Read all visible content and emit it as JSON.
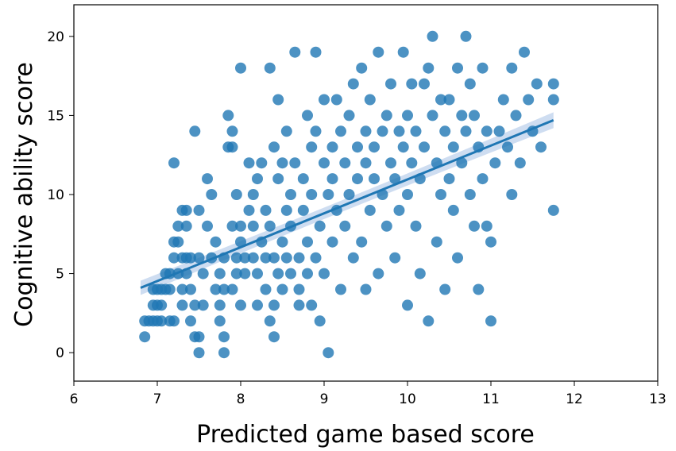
{
  "chart_data": {
    "type": "scatter",
    "title": "",
    "xlabel": "Predicted game based score",
    "ylabel": "Cognitive ability score",
    "xlim": [
      6,
      13
    ],
    "ylim": [
      -1.8,
      22
    ],
    "xticks": [
      "6",
      "7",
      "8",
      "9",
      "10",
      "11",
      "12",
      "13"
    ],
    "yticks": [
      "0",
      "5",
      "10",
      "15",
      "20"
    ],
    "grid": false,
    "legend": "none",
    "point_color": "#1f77b4",
    "regression": {
      "x": [
        6.8,
        11.75
      ],
      "y": [
        4.1,
        14.7
      ],
      "ci_band": true,
      "band_color": "#aec7e8"
    },
    "points": [
      [
        6.85,
        1
      ],
      [
        6.85,
        2
      ],
      [
        6.9,
        2
      ],
      [
        6.95,
        4
      ],
      [
        6.95,
        2
      ],
      [
        6.95,
        3
      ],
      [
        7.0,
        3
      ],
      [
        7.0,
        2
      ],
      [
        7.0,
        4
      ],
      [
        7.05,
        3
      ],
      [
        7.05,
        2
      ],
      [
        7.05,
        4
      ],
      [
        7.1,
        4
      ],
      [
        7.1,
        5
      ],
      [
        7.15,
        2
      ],
      [
        7.15,
        4
      ],
      [
        7.15,
        5
      ],
      [
        7.2,
        6
      ],
      [
        7.2,
        7
      ],
      [
        7.2,
        2
      ],
      [
        7.2,
        12
      ],
      [
        7.25,
        5
      ],
      [
        7.25,
        7
      ],
      [
        7.25,
        8
      ],
      [
        7.3,
        3
      ],
      [
        7.3,
        4
      ],
      [
        7.3,
        6
      ],
      [
        7.3,
        9
      ],
      [
        7.35,
        5
      ],
      [
        7.35,
        6
      ],
      [
        7.35,
        8
      ],
      [
        7.35,
        9
      ],
      [
        7.4,
        4
      ],
      [
        7.4,
        6
      ],
      [
        7.4,
        2
      ],
      [
        7.45,
        3
      ],
      [
        7.45,
        1
      ],
      [
        7.45,
        14
      ],
      [
        7.5,
        0
      ],
      [
        7.5,
        1
      ],
      [
        7.5,
        6
      ],
      [
        7.5,
        9
      ],
      [
        7.55,
        3
      ],
      [
        7.55,
        5
      ],
      [
        7.6,
        8
      ],
      [
        7.6,
        11
      ],
      [
        7.65,
        6
      ],
      [
        7.65,
        10
      ],
      [
        7.7,
        4
      ],
      [
        7.7,
        7
      ],
      [
        7.75,
        2
      ],
      [
        7.75,
        3
      ],
      [
        7.75,
        5
      ],
      [
        7.8,
        0
      ],
      [
        7.8,
        1
      ],
      [
        7.8,
        4
      ],
      [
        7.8,
        6
      ],
      [
        7.85,
        13
      ],
      [
        7.85,
        15
      ],
      [
        7.9,
        4
      ],
      [
        7.9,
        8
      ],
      [
        7.9,
        14
      ],
      [
        7.9,
        13
      ],
      [
        7.95,
        6
      ],
      [
        7.95,
        10
      ],
      [
        7.95,
        5
      ],
      [
        8.0,
        7
      ],
      [
        8.0,
        8
      ],
      [
        8.0,
        3
      ],
      [
        8.0,
        18
      ],
      [
        8.05,
        5
      ],
      [
        8.05,
        6
      ],
      [
        8.1,
        9
      ],
      [
        8.1,
        12
      ],
      [
        8.15,
        8
      ],
      [
        8.15,
        10
      ],
      [
        8.15,
        6
      ],
      [
        8.2,
        5
      ],
      [
        8.2,
        11
      ],
      [
        8.2,
        3
      ],
      [
        8.25,
        7
      ],
      [
        8.25,
        12
      ],
      [
        8.3,
        6
      ],
      [
        8.3,
        9
      ],
      [
        8.3,
        4
      ],
      [
        8.35,
        2
      ],
      [
        8.35,
        8
      ],
      [
        8.35,
        18
      ],
      [
        8.4,
        1
      ],
      [
        8.4,
        3
      ],
      [
        8.4,
        6
      ],
      [
        8.4,
        13
      ],
      [
        8.45,
        5
      ],
      [
        8.45,
        11
      ],
      [
        8.45,
        16
      ],
      [
        8.5,
        4
      ],
      [
        8.5,
        7
      ],
      [
        8.5,
        12
      ],
      [
        8.55,
        6
      ],
      [
        8.55,
        9
      ],
      [
        8.55,
        14
      ],
      [
        8.6,
        5
      ],
      [
        8.6,
        8
      ],
      [
        8.6,
        10
      ],
      [
        8.65,
        19
      ],
      [
        8.65,
        12
      ],
      [
        8.7,
        6
      ],
      [
        8.7,
        4
      ],
      [
        8.7,
        3
      ],
      [
        8.75,
        9
      ],
      [
        8.75,
        11
      ],
      [
        8.8,
        5
      ],
      [
        8.8,
        7
      ],
      [
        8.8,
        15
      ],
      [
        8.85,
        13
      ],
      [
        8.85,
        10
      ],
      [
        8.85,
        3
      ],
      [
        8.9,
        14
      ],
      [
        8.9,
        6
      ],
      [
        8.9,
        19
      ],
      [
        8.95,
        2
      ],
      [
        8.95,
        8
      ],
      [
        9.0,
        16
      ],
      [
        9.0,
        12
      ],
      [
        9.0,
        5
      ],
      [
        9.05,
        10
      ],
      [
        9.05,
        0
      ],
      [
        9.1,
        11
      ],
      [
        9.1,
        13
      ],
      [
        9.1,
        7
      ],
      [
        9.15,
        16
      ],
      [
        9.15,
        9
      ],
      [
        9.2,
        14
      ],
      [
        9.2,
        4
      ],
      [
        9.25,
        12
      ],
      [
        9.25,
        8
      ],
      [
        9.3,
        15
      ],
      [
        9.3,
        10
      ],
      [
        9.35,
        17
      ],
      [
        9.35,
        6
      ],
      [
        9.4,
        13
      ],
      [
        9.4,
        11
      ],
      [
        9.45,
        18
      ],
      [
        9.45,
        7
      ],
      [
        9.5,
        14
      ],
      [
        9.5,
        12
      ],
      [
        9.5,
        4
      ],
      [
        9.55,
        9
      ],
      [
        9.55,
        16
      ],
      [
        9.6,
        11
      ],
      [
        9.6,
        13
      ],
      [
        9.65,
        19
      ],
      [
        9.65,
        5
      ],
      [
        9.7,
        14
      ],
      [
        9.7,
        10
      ],
      [
        9.75,
        8
      ],
      [
        9.75,
        15
      ],
      [
        9.8,
        12
      ],
      [
        9.8,
        17
      ],
      [
        9.85,
        11
      ],
      [
        9.85,
        6
      ],
      [
        9.9,
        14
      ],
      [
        9.9,
        9
      ],
      [
        9.95,
        19
      ],
      [
        9.95,
        13
      ],
      [
        10.0,
        15
      ],
      [
        10.0,
        10
      ],
      [
        10.0,
        3
      ],
      [
        10.05,
        17
      ],
      [
        10.05,
        12
      ],
      [
        10.1,
        14
      ],
      [
        10.1,
        8
      ],
      [
        10.15,
        11
      ],
      [
        10.15,
        5
      ],
      [
        10.2,
        17
      ],
      [
        10.2,
        13
      ],
      [
        10.25,
        2
      ],
      [
        10.25,
        18
      ],
      [
        10.3,
        20
      ],
      [
        10.3,
        15
      ],
      [
        10.35,
        12
      ],
      [
        10.35,
        7
      ],
      [
        10.4,
        16
      ],
      [
        10.4,
        10
      ],
      [
        10.45,
        14
      ],
      [
        10.45,
        4
      ],
      [
        10.5,
        16
      ],
      [
        10.5,
        11
      ],
      [
        10.55,
        13
      ],
      [
        10.55,
        9
      ],
      [
        10.6,
        18
      ],
      [
        10.6,
        6
      ],
      [
        10.65,
        15
      ],
      [
        10.65,
        12
      ],
      [
        10.7,
        20
      ],
      [
        10.7,
        14
      ],
      [
        10.75,
        17
      ],
      [
        10.75,
        10
      ],
      [
        10.8,
        15
      ],
      [
        10.8,
        8
      ],
      [
        10.85,
        13
      ],
      [
        10.85,
        4
      ],
      [
        10.9,
        18
      ],
      [
        10.9,
        11
      ],
      [
        10.95,
        14
      ],
      [
        10.95,
        8
      ],
      [
        11.0,
        7
      ],
      [
        11.0,
        2
      ],
      [
        11.05,
        12
      ],
      [
        11.1,
        14
      ],
      [
        11.15,
        16
      ],
      [
        11.2,
        13
      ],
      [
        11.25,
        18
      ],
      [
        11.25,
        10
      ],
      [
        11.3,
        15
      ],
      [
        11.35,
        12
      ],
      [
        11.4,
        19
      ],
      [
        11.45,
        16
      ],
      [
        11.5,
        14
      ],
      [
        11.55,
        17
      ],
      [
        11.6,
        13
      ],
      [
        11.75,
        16
      ],
      [
        11.75,
        9
      ],
      [
        11.75,
        17
      ]
    ]
  }
}
